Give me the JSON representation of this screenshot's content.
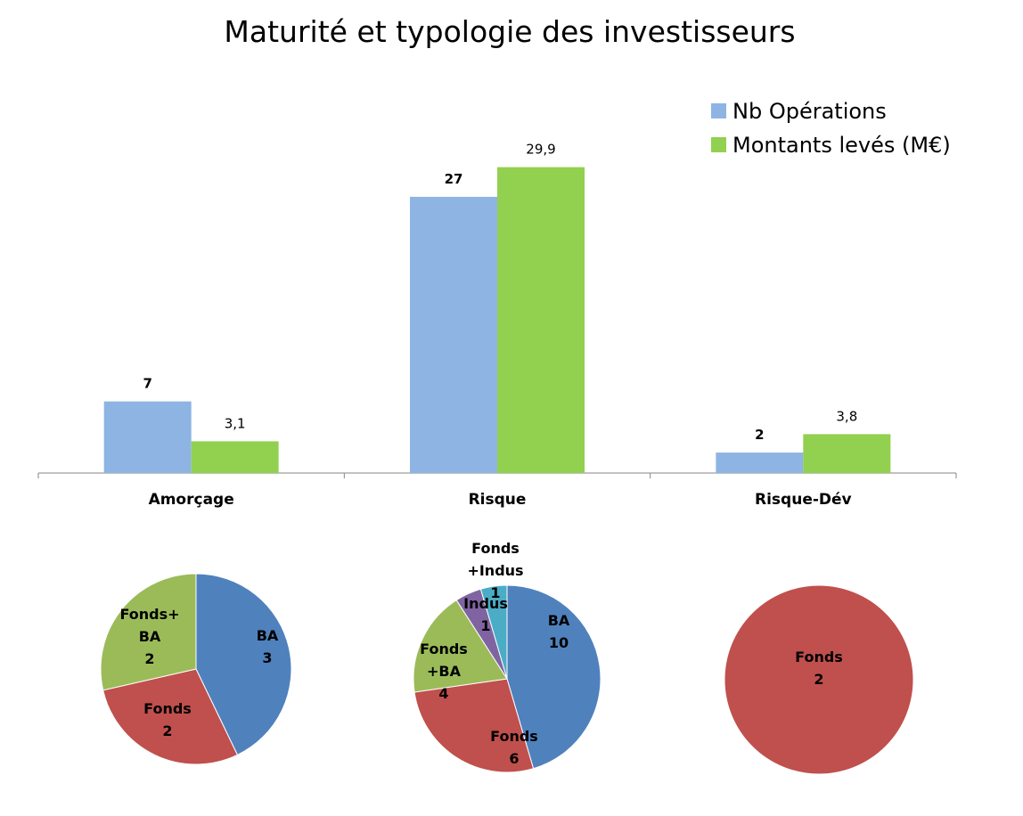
{
  "chart_data": [
    {
      "type": "bar",
      "title": "Maturité et typologie des investisseurs",
      "categories": [
        "Amorçage",
        "Risque",
        "Risque-Dév"
      ],
      "series": [
        {
          "name": "Nb Opérations",
          "values": [
            7,
            27,
            2
          ],
          "labels": [
            "7",
            "27",
            "2"
          ],
          "color": "#8EB4E3"
        },
        {
          "name": "Montants levés (M€)",
          "values": [
            3.1,
            29.9,
            3.8
          ],
          "labels": [
            "3,1",
            "29,9",
            "3,8"
          ],
          "color": "#92D050"
        }
      ],
      "ylim": [
        0,
        31
      ],
      "legend": "top-right",
      "grid": false
    },
    {
      "type": "pie",
      "category": "Amorçage",
      "slices": [
        {
          "label": "BA",
          "value": 3,
          "color": "#4F81BD"
        },
        {
          "label": "Fonds",
          "value": 2,
          "color": "#C0504D"
        },
        {
          "label": "Fonds+ BA",
          "value": 2,
          "color": "#9BBB59"
        }
      ]
    },
    {
      "type": "pie",
      "category": "Risque",
      "slices": [
        {
          "label": "BA",
          "value": 10,
          "color": "#4F81BD"
        },
        {
          "label": "Fonds",
          "value": 6,
          "color": "#C0504D"
        },
        {
          "label": "Fonds +BA",
          "value": 4,
          "color": "#9BBB59"
        },
        {
          "label": "Indus",
          "value": 1,
          "color": "#8064A2"
        },
        {
          "label": "Fonds +Indus",
          "value": 1,
          "color": "#4BACC6"
        }
      ]
    },
    {
      "type": "pie",
      "category": "Risque-Dév",
      "slices": [
        {
          "label": "Fonds",
          "value": 2,
          "color": "#C0504D"
        }
      ]
    }
  ]
}
